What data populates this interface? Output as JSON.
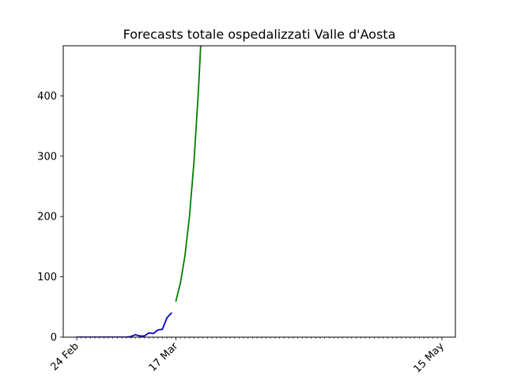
{
  "chart_data": {
    "type": "line",
    "title": "Forecasts totale ospedalizzati Valle d'Aosta",
    "xlabel": "",
    "ylabel": "",
    "ylim": [
      0,
      483
    ],
    "xlim": [
      "2020-02-21",
      "2020-05-18"
    ],
    "grid": false,
    "legend": "none",
    "x_tick_labels": [
      {
        "date": "2020-02-24",
        "label": "24 Feb"
      },
      {
        "date": "2020-03-17",
        "label": "17 Mar"
      },
      {
        "date": "2020-05-15",
        "label": "15 May"
      }
    ],
    "x_minor_tick_range": [
      "2020-02-24",
      "2020-05-15"
    ],
    "y_ticks": [
      0,
      100,
      200,
      300,
      400
    ],
    "series": [
      {
        "color": "#0000cc",
        "points": [
          {
            "x": "2020-02-24",
            "y": 0
          },
          {
            "x": "2020-02-25",
            "y": 0
          },
          {
            "x": "2020-02-26",
            "y": 0
          },
          {
            "x": "2020-02-27",
            "y": 0
          },
          {
            "x": "2020-02-28",
            "y": 0
          },
          {
            "x": "2020-02-29",
            "y": 0
          },
          {
            "x": "2020-03-01",
            "y": 0
          },
          {
            "x": "2020-03-02",
            "y": 0
          },
          {
            "x": "2020-03-03",
            "y": 0
          },
          {
            "x": "2020-03-04",
            "y": 0
          },
          {
            "x": "2020-03-05",
            "y": 0
          },
          {
            "x": "2020-03-06",
            "y": 0
          },
          {
            "x": "2020-03-07",
            "y": 1
          },
          {
            "x": "2020-03-08",
            "y": 4
          },
          {
            "x": "2020-03-09",
            "y": 2
          },
          {
            "x": "2020-03-10",
            "y": 2
          },
          {
            "x": "2020-03-11",
            "y": 7
          },
          {
            "x": "2020-03-12",
            "y": 6
          },
          {
            "x": "2020-03-13",
            "y": 12
          },
          {
            "x": "2020-03-14",
            "y": 13
          },
          {
            "x": "2020-03-15",
            "y": 32
          },
          {
            "x": "2020-03-16",
            "y": 40
          }
        ]
      },
      {
        "color": "#007f00",
        "points": [
          {
            "x": "2020-03-17",
            "y": 60
          },
          {
            "x": "2020-03-18",
            "y": 90
          },
          {
            "x": "2020-03-19",
            "y": 135
          },
          {
            "x": "2020-03-20",
            "y": 200
          },
          {
            "x": "2020-03-21",
            "y": 290
          },
          {
            "x": "2020-03-22",
            "y": 410
          },
          {
            "x": "2020-03-23",
            "y": 560
          }
        ]
      }
    ]
  }
}
